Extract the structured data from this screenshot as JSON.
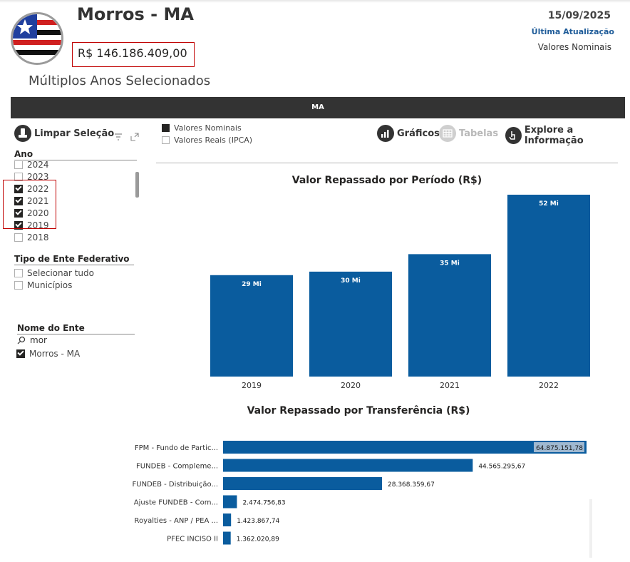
{
  "header": {
    "city_name": "Morros - MA",
    "total_value": "R$ 146.186.409,00",
    "selection_label": "Múltiplos Anos Selecionados",
    "date": "15/09/2025",
    "last_update_label": "Última Atualização",
    "values_mode_label": "Valores Nominais"
  },
  "state_bar": {
    "label": "MA"
  },
  "toolbar": {
    "clear_label": "Limpar Seleção",
    "value_options": [
      {
        "label": "Valores Nominais",
        "checked": true
      },
      {
        "label": "Valores Reais (IPCA)",
        "checked": false
      }
    ],
    "charts_label": "Gráficos",
    "tables_label": "Tabelas",
    "explore_label": "Explore a Informação"
  },
  "slicers": {
    "year": {
      "title": "Ano",
      "items": [
        {
          "label": "2024",
          "checked": false
        },
        {
          "label": "2023",
          "checked": false
        },
        {
          "label": "2022",
          "checked": true
        },
        {
          "label": "2021",
          "checked": true
        },
        {
          "label": "2020",
          "checked": true
        },
        {
          "label": "2019",
          "checked": true
        },
        {
          "label": "2018",
          "checked": false
        }
      ]
    },
    "entity_type": {
      "title": "Tipo de Ente Federativo",
      "items": [
        {
          "label": "Selecionar tudo",
          "checked": false
        },
        {
          "label": "Municípios",
          "checked": false
        }
      ]
    },
    "entity_name": {
      "title": "Nome do Ente",
      "search_value": "mor",
      "items": [
        {
          "label": "Morros - MA",
          "checked": true
        }
      ]
    }
  },
  "colors": {
    "bar": "#0a5c9e",
    "dark": "#333333",
    "highlight_border": "#c00000"
  },
  "chart_data": [
    {
      "type": "bar",
      "title": "Valor Repassado por Período (R$)",
      "categories": [
        "2019",
        "2020",
        "2021",
        "2022"
      ],
      "values": [
        29,
        30,
        35,
        52
      ],
      "data_labels": [
        "29 Mi",
        "30 Mi",
        "35 Mi",
        "52 Mi"
      ],
      "ylim": [
        0,
        52
      ]
    },
    {
      "type": "bar",
      "orientation": "horizontal",
      "title": "Valor Repassado por Transferência (R$)",
      "categories": [
        "FPM - Fundo de Partic...",
        "FUNDEB - Compleme...",
        "FUNDEB - Distribuição...",
        "Ajuste FUNDEB - Com...",
        "Royalties - ANP / PEA ...",
        "PFEC INCISO II"
      ],
      "values": [
        64875151.78,
        44565295.67,
        28368359.67,
        2474756.83,
        1423867.74,
        1362020.89
      ],
      "data_labels": [
        "64.875.151,78",
        "44.565.295,67",
        "28.368.359,67",
        "2.474.756,83",
        "1.423.867,74",
        "1.362.020,89"
      ]
    }
  ]
}
